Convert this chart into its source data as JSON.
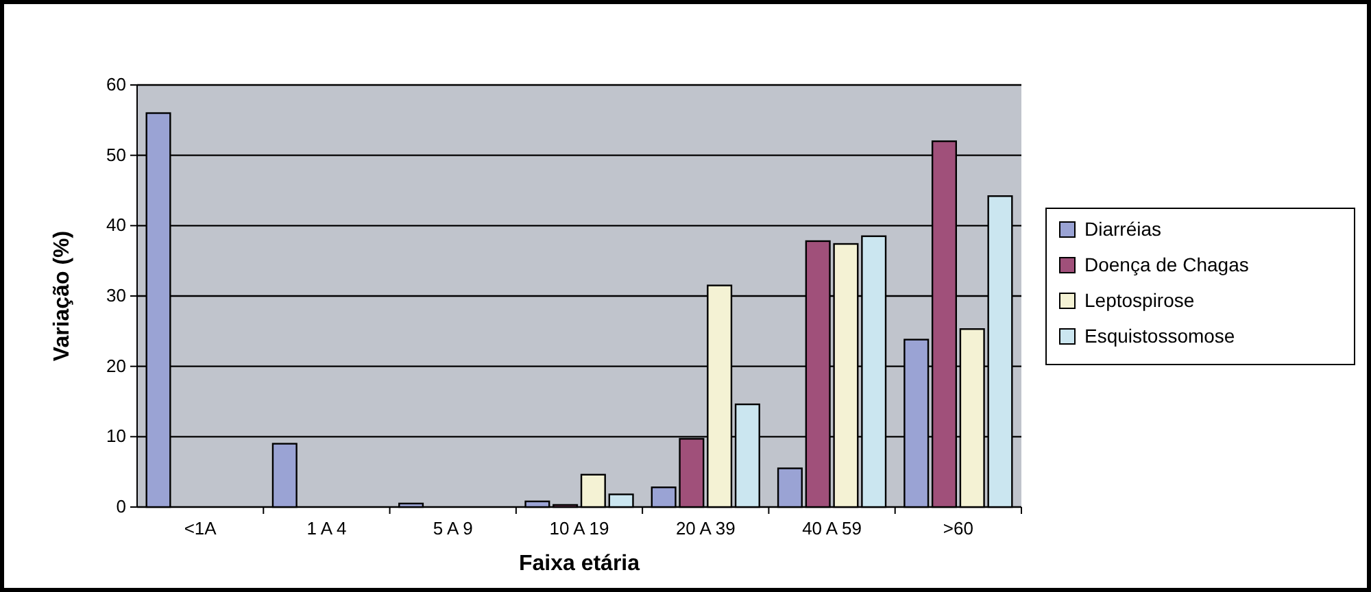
{
  "chart_data": {
    "type": "bar",
    "xlabel": "Faixa etária",
    "ylabel": "Variação (%)",
    "categories": [
      "<1A",
      "1 A 4",
      "5 A 9",
      "10 A 19",
      "20 A 39",
      "40 A 59",
      ">60"
    ],
    "series": [
      {
        "name": "Diarréias",
        "color": "#9aa3d4",
        "values": [
          56,
          9,
          0.5,
          0.8,
          2.8,
          5.5,
          23.8
        ]
      },
      {
        "name": "Doença de Chagas",
        "color": "#a0507a",
        "values": [
          0,
          0,
          0,
          0.3,
          9.7,
          37.8,
          52
        ]
      },
      {
        "name": "Leptospirose",
        "color": "#f4f2d4",
        "values": [
          0,
          0,
          0,
          4.6,
          31.5,
          37.4,
          25.3
        ]
      },
      {
        "name": "Esquistossomose",
        "color": "#cbe6f0",
        "values": [
          0,
          0,
          0,
          1.8,
          14.6,
          38.5,
          44.2
        ]
      }
    ],
    "ylim": [
      0,
      60
    ],
    "yticks": [
      0,
      10,
      20,
      30,
      40,
      50,
      60
    ],
    "grid": "y",
    "legend": "right"
  }
}
